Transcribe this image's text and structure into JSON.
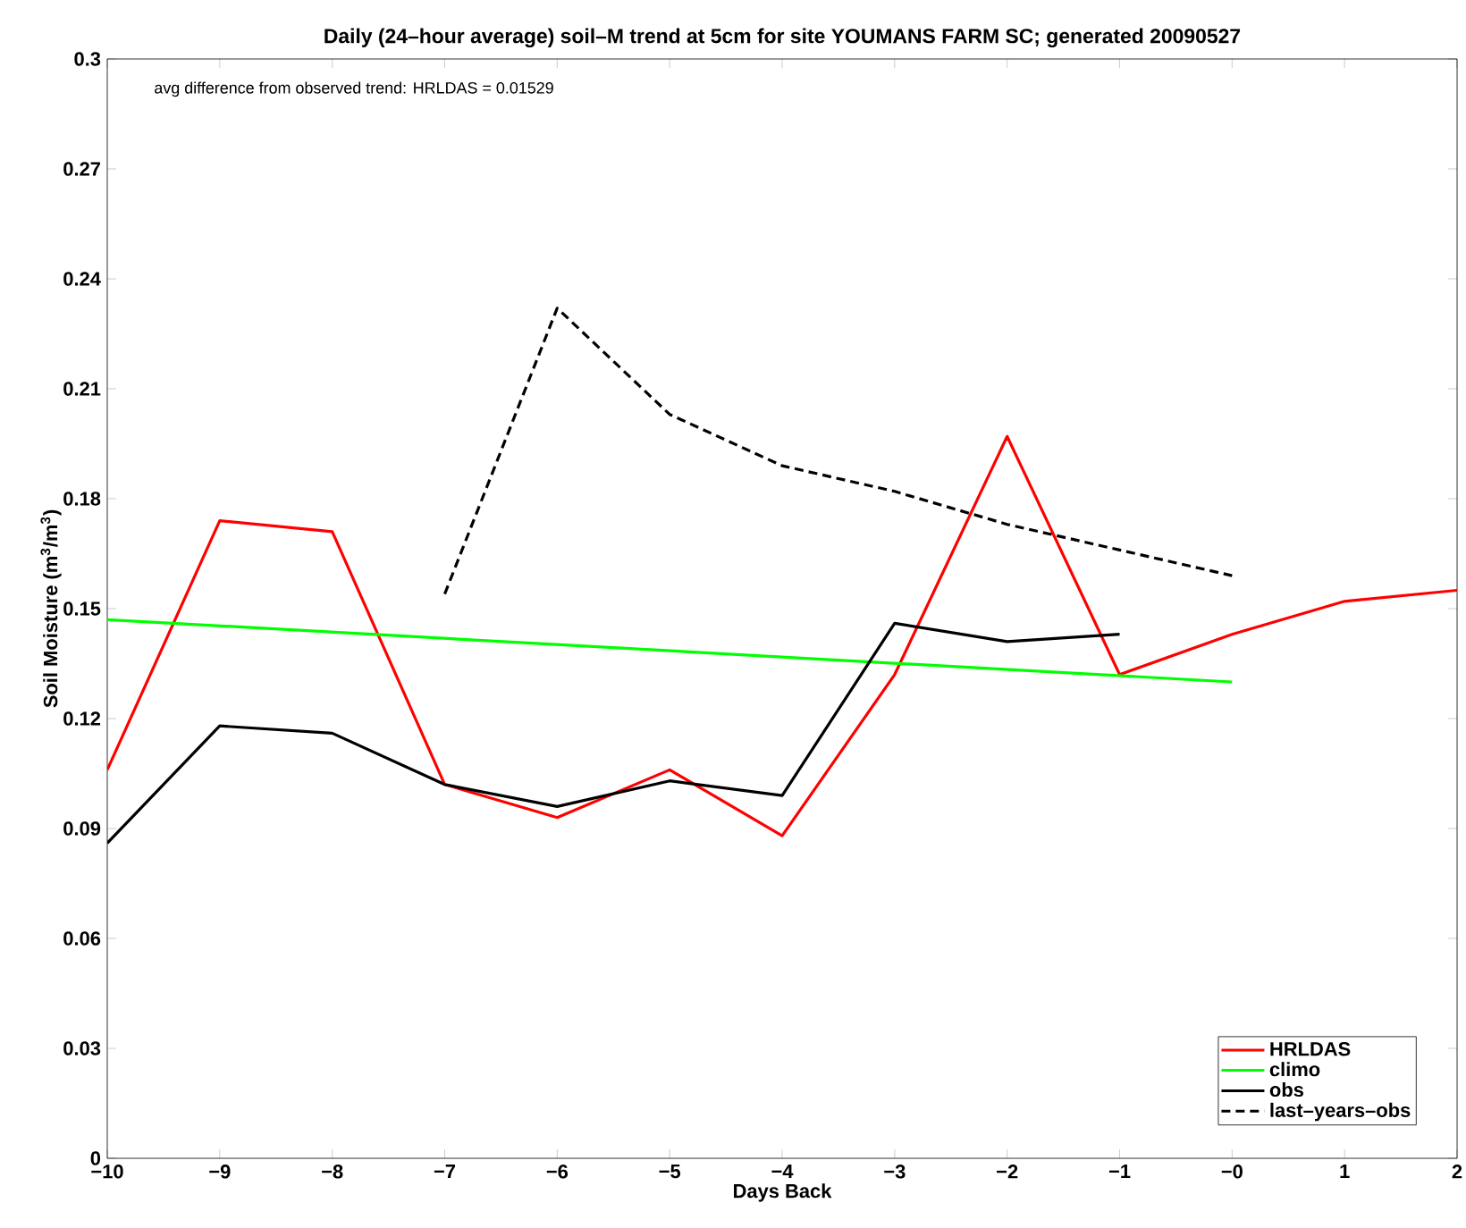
{
  "chart_data": {
    "type": "line",
    "title": "Daily (24–hour average) soil–M trend at 5cm for site YOUMANS FARM SC; generated 20090527",
    "xlabel": "Days Back",
    "ylabel": "Soil Moisture (m$^{3}$/m$^{3}$)",
    "annotations": [
      "avg difference from observed trend: HRLDAS = 0.01529"
    ],
    "xlim": [
      -10,
      2
    ],
    "ylim": [
      0,
      0.3
    ],
    "xticks": [
      {
        "value": -10,
        "label": "−10"
      },
      {
        "value": -9,
        "label": "−9"
      },
      {
        "value": -8,
        "label": "−8"
      },
      {
        "value": -7,
        "label": "−7"
      },
      {
        "value": -6,
        "label": "−6"
      },
      {
        "value": -5,
        "label": "−5"
      },
      {
        "value": -4,
        "label": "−4"
      },
      {
        "value": -3,
        "label": "−3"
      },
      {
        "value": -2,
        "label": "−2"
      },
      {
        "value": -1,
        "label": "−1"
      },
      {
        "value": 0,
        "label": "−0"
      },
      1,
      2
    ],
    "yticks": [
      0,
      0.03,
      0.06,
      0.09,
      0.12,
      0.15,
      0.18,
      0.21,
      0.24,
      0.27,
      0.3
    ],
    "grid": false,
    "legend": "bottom right",
    "series": [
      {
        "name": "HRLDAS",
        "color": "#ff0000",
        "line_style": "solid",
        "x": [
          -10,
          -9,
          -8,
          -7,
          -6,
          -5,
          -4,
          -3,
          -2,
          -1,
          0,
          1,
          2
        ],
        "values": [
          0.106,
          0.174,
          0.171,
          0.102,
          0.093,
          0.106,
          0.088,
          0.132,
          0.197,
          0.132,
          0.143,
          0.152,
          0.155
        ]
      },
      {
        "name": "climo",
        "color": "#00ff00",
        "line_style": "solid",
        "x": [
          -10,
          0
        ],
        "values": [
          0.147,
          0.13
        ]
      },
      {
        "name": "obs",
        "color": "#000000",
        "line_style": "solid",
        "x": [
          -10,
          -9,
          -8,
          -7,
          -6,
          -5,
          -4,
          -3,
          -2,
          -1
        ],
        "values": [
          0.086,
          0.118,
          0.116,
          0.102,
          0.096,
          0.103,
          0.099,
          0.146,
          0.141,
          0.143
        ]
      },
      {
        "name": "last–years–obs",
        "color": "#000000",
        "line_style": "dashed",
        "x": [
          -7,
          -6,
          -5,
          -4,
          -3,
          -2,
          -1,
          0
        ],
        "values": [
          0.154,
          0.232,
          0.203,
          0.189,
          0.182,
          0.173,
          0.166,
          0.159
        ]
      }
    ]
  }
}
